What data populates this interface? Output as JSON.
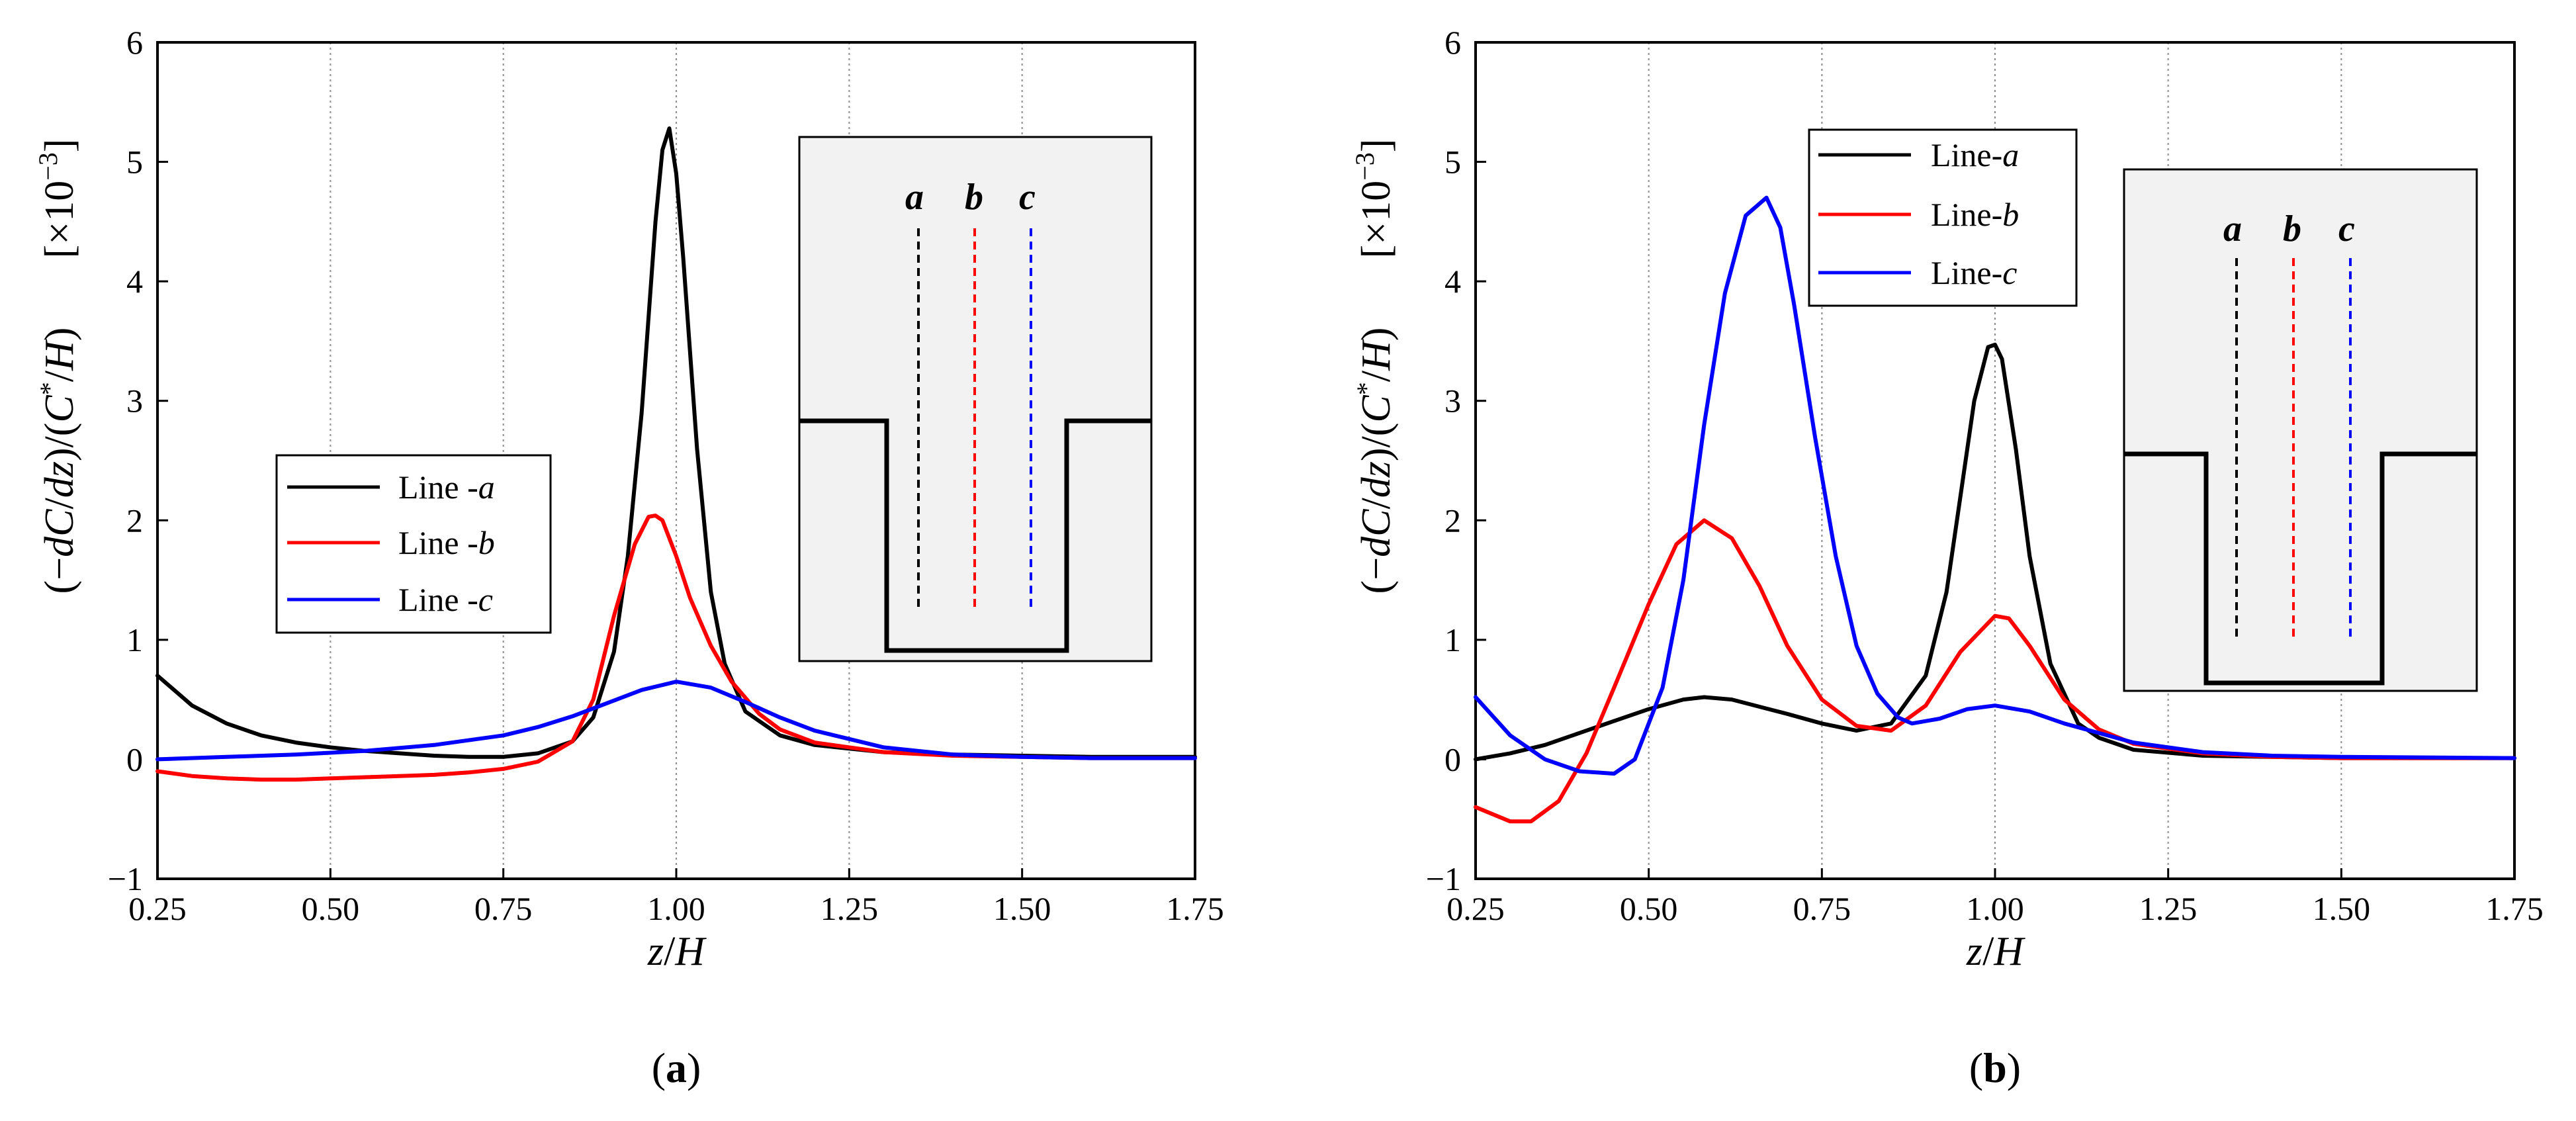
{
  "figure": {
    "y_unit_label": "[×10",
    "y_unit_exponent": "−3",
    "y_unit_close": "]"
  },
  "chart_data": [
    {
      "type": "line",
      "panel_label": "a",
      "xlabel": {
        "var": "z",
        "den": "H"
      },
      "ylabel": {
        "prefix": "(−",
        "d1": "dC",
        "slash1": "/",
        "d2": "dz",
        "mid": ")/(",
        "c": "C",
        "star": "*",
        "slash2": "/",
        "h": "H",
        "close": ")"
      },
      "xlim": [
        0.25,
        1.75
      ],
      "ylim": [
        -1,
        6
      ],
      "x_ticks": [
        "0.25",
        "0.50",
        "0.75",
        "1.00",
        "1.25",
        "1.50",
        "1.75"
      ],
      "y_ticks": [
        "−1",
        "0",
        "1",
        "2",
        "3",
        "4",
        "5",
        "6"
      ],
      "legend": [
        {
          "prefix": "Line -",
          "letter": "a",
          "color": "#000000"
        },
        {
          "prefix": "Line -",
          "letter": "b",
          "color": "#ff0000"
        },
        {
          "prefix": "Line -",
          "letter": "c",
          "color": "#0000ff"
        }
      ],
      "inset_letters": [
        {
          "letter": "a",
          "color": "#000000"
        },
        {
          "letter": "b",
          "color": "#ff0000"
        },
        {
          "letter": "c",
          "color": "#0000ff"
        }
      ],
      "series": [
        {
          "name": "Line-a",
          "color": "#000000",
          "x": [
            0.25,
            0.3,
            0.35,
            0.4,
            0.45,
            0.5,
            0.55,
            0.6,
            0.65,
            0.7,
            0.75,
            0.8,
            0.85,
            0.88,
            0.91,
            0.93,
            0.95,
            0.97,
            0.98,
            0.99,
            1.0,
            1.01,
            1.03,
            1.05,
            1.07,
            1.1,
            1.15,
            1.2,
            1.3,
            1.4,
            1.5,
            1.6,
            1.75
          ],
          "y": [
            0.7,
            0.45,
            0.3,
            0.2,
            0.14,
            0.1,
            0.07,
            0.05,
            0.03,
            0.02,
            0.02,
            0.05,
            0.15,
            0.35,
            0.9,
            1.7,
            2.9,
            4.5,
            5.1,
            5.28,
            4.9,
            4.2,
            2.6,
            1.4,
            0.8,
            0.4,
            0.2,
            0.12,
            0.06,
            0.04,
            0.03,
            0.02,
            0.02
          ]
        },
        {
          "name": "Line-b",
          "color": "#ff0000",
          "x": [
            0.25,
            0.3,
            0.35,
            0.4,
            0.45,
            0.5,
            0.55,
            0.6,
            0.65,
            0.7,
            0.75,
            0.8,
            0.85,
            0.88,
            0.91,
            0.94,
            0.96,
            0.97,
            0.98,
            1.0,
            1.02,
            1.05,
            1.08,
            1.12,
            1.15,
            1.2,
            1.3,
            1.4,
            1.5,
            1.6,
            1.75
          ],
          "y": [
            -0.1,
            -0.14,
            -0.16,
            -0.17,
            -0.17,
            -0.16,
            -0.15,
            -0.14,
            -0.13,
            -0.11,
            -0.08,
            -0.02,
            0.15,
            0.5,
            1.2,
            1.8,
            2.03,
            2.04,
            2.0,
            1.7,
            1.35,
            0.95,
            0.65,
            0.38,
            0.25,
            0.14,
            0.06,
            0.03,
            0.02,
            0.01,
            0.01
          ]
        },
        {
          "name": "Line-c",
          "color": "#0000ff",
          "x": [
            0.25,
            0.35,
            0.45,
            0.55,
            0.65,
            0.75,
            0.8,
            0.85,
            0.9,
            0.95,
            1.0,
            1.05,
            1.1,
            1.15,
            1.2,
            1.3,
            1.4,
            1.5,
            1.6,
            1.75
          ],
          "y": [
            0.0,
            0.02,
            0.04,
            0.07,
            0.12,
            0.2,
            0.27,
            0.36,
            0.47,
            0.58,
            0.65,
            0.6,
            0.48,
            0.35,
            0.24,
            0.1,
            0.04,
            0.02,
            0.01,
            0.01
          ]
        }
      ]
    },
    {
      "type": "line",
      "panel_label": "b",
      "xlabel": {
        "var": "z",
        "den": "H"
      },
      "ylabel": {
        "prefix": "(−",
        "d1": "dC",
        "slash1": "/",
        "d2": "dz",
        "mid": ")/(",
        "c": "C",
        "star": "*",
        "slash2": "/",
        "h": "H",
        "close": ")"
      },
      "xlim": [
        0.25,
        1.75
      ],
      "ylim": [
        -1,
        6
      ],
      "x_ticks": [
        "0.25",
        "0.50",
        "0.75",
        "1.00",
        "1.25",
        "1.50",
        "1.75"
      ],
      "y_ticks": [
        "−1",
        "0",
        "1",
        "2",
        "3",
        "4",
        "5",
        "6"
      ],
      "legend": [
        {
          "prefix": "Line-",
          "letter": "a",
          "color": "#000000"
        },
        {
          "prefix": "Line-",
          "letter": "b",
          "color": "#ff0000"
        },
        {
          "prefix": "Line-",
          "letter": "c",
          "color": "#0000ff"
        }
      ],
      "inset_letters": [
        {
          "letter": "a",
          "color": "#000000"
        },
        {
          "letter": "b",
          "color": "#ff0000"
        },
        {
          "letter": "c",
          "color": "#0000ff"
        }
      ],
      "series": [
        {
          "name": "Line-a",
          "color": "#000000",
          "x": [
            0.25,
            0.3,
            0.35,
            0.4,
            0.45,
            0.5,
            0.55,
            0.58,
            0.62,
            0.66,
            0.7,
            0.75,
            0.8,
            0.85,
            0.9,
            0.93,
            0.95,
            0.97,
            0.99,
            1.0,
            1.01,
            1.03,
            1.05,
            1.08,
            1.12,
            1.15,
            1.2,
            1.3,
            1.4,
            1.5,
            1.75
          ],
          "y": [
            0.0,
            0.05,
            0.12,
            0.22,
            0.32,
            0.42,
            0.5,
            0.52,
            0.5,
            0.44,
            0.38,
            0.3,
            0.24,
            0.3,
            0.7,
            1.4,
            2.2,
            3.0,
            3.45,
            3.47,
            3.35,
            2.6,
            1.7,
            0.8,
            0.3,
            0.18,
            0.08,
            0.03,
            0.02,
            0.01,
            0.01
          ]
        },
        {
          "name": "Line-b",
          "color": "#ff0000",
          "x": [
            0.25,
            0.3,
            0.33,
            0.37,
            0.41,
            0.45,
            0.5,
            0.54,
            0.58,
            0.62,
            0.66,
            0.7,
            0.75,
            0.8,
            0.85,
            0.9,
            0.95,
            1.0,
            1.02,
            1.05,
            1.1,
            1.15,
            1.2,
            1.3,
            1.4,
            1.5,
            1.75
          ],
          "y": [
            -0.4,
            -0.52,
            -0.52,
            -0.35,
            0.05,
            0.6,
            1.3,
            1.8,
            2.0,
            1.85,
            1.45,
            0.95,
            0.5,
            0.28,
            0.24,
            0.45,
            0.9,
            1.2,
            1.18,
            0.95,
            0.5,
            0.25,
            0.13,
            0.05,
            0.02,
            0.01,
            0.01
          ]
        },
        {
          "name": "Line-c",
          "color": "#0000ff",
          "x": [
            0.25,
            0.3,
            0.35,
            0.4,
            0.45,
            0.48,
            0.52,
            0.55,
            0.58,
            0.61,
            0.64,
            0.67,
            0.69,
            0.71,
            0.74,
            0.77,
            0.8,
            0.83,
            0.86,
            0.88,
            0.92,
            0.96,
            1.0,
            1.05,
            1.1,
            1.2,
            1.3,
            1.4,
            1.5,
            1.75
          ],
          "y": [
            0.52,
            0.2,
            0.0,
            -0.1,
            -0.12,
            0.0,
            0.6,
            1.5,
            2.8,
            3.9,
            4.55,
            4.7,
            4.45,
            3.8,
            2.7,
            1.7,
            0.95,
            0.55,
            0.35,
            0.3,
            0.34,
            0.42,
            0.45,
            0.4,
            0.3,
            0.14,
            0.06,
            0.03,
            0.02,
            0.01
          ]
        }
      ]
    }
  ]
}
